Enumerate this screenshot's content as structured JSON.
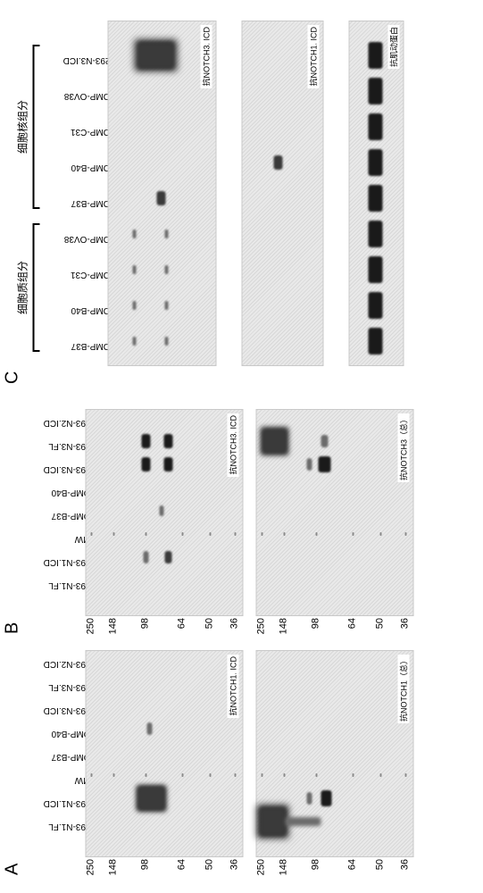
{
  "colors": {
    "band_dark": "#1a1a1a",
    "band_mid": "#3a3a3a",
    "band_light": "#6b6b6b",
    "marker": "#8a8a8a"
  },
  "mw_ticks": [
    250,
    148,
    98,
    64,
    50,
    36
  ],
  "panelA": {
    "letter": "A",
    "lanes": [
      "293-N1.FL",
      "293-N1.ICD",
      "MW",
      "OMP-B37",
      "OMP-B40",
      "293-N3.ICD",
      "293-N3.FL",
      "293-N2.ICD"
    ],
    "blots": [
      {
        "tag": "抗NOTCH1. ICD"
      },
      {
        "tag": "抗NOTCH1（总）"
      }
    ]
  },
  "panelB": {
    "letter": "B",
    "lanes": [
      "293-N1.FL",
      "293-N1.ICD",
      "MW",
      "OMP-B37",
      "OMP-B40",
      "293-N3.ICD",
      "293-N3.FL",
      "293-N2.ICD"
    ],
    "blots": [
      {
        "tag": "抗NOTCH3. ICD"
      },
      {
        "tag": "抗NOTCH3（总）"
      }
    ]
  },
  "panelC": {
    "letter": "C",
    "groups": [
      {
        "label": "细胞质组分",
        "span": [
          0,
          4
        ]
      },
      {
        "label": "细胞核组分",
        "span": [
          4,
          9
        ]
      }
    ],
    "lanes": [
      "OMP-B37",
      "OMP-B40",
      "OMP-C31",
      "OMP-OV38",
      "OMP-B37",
      "OMP-B40",
      "OMP-C31",
      "OMP-OV38",
      "293-N3.ICD"
    ],
    "blots": [
      {
        "tag": "抗NOTCH3. ICD"
      },
      {
        "tag": "抗NOTCH1. ICD"
      },
      {
        "tag": "抗肌动蛋白"
      }
    ]
  }
}
